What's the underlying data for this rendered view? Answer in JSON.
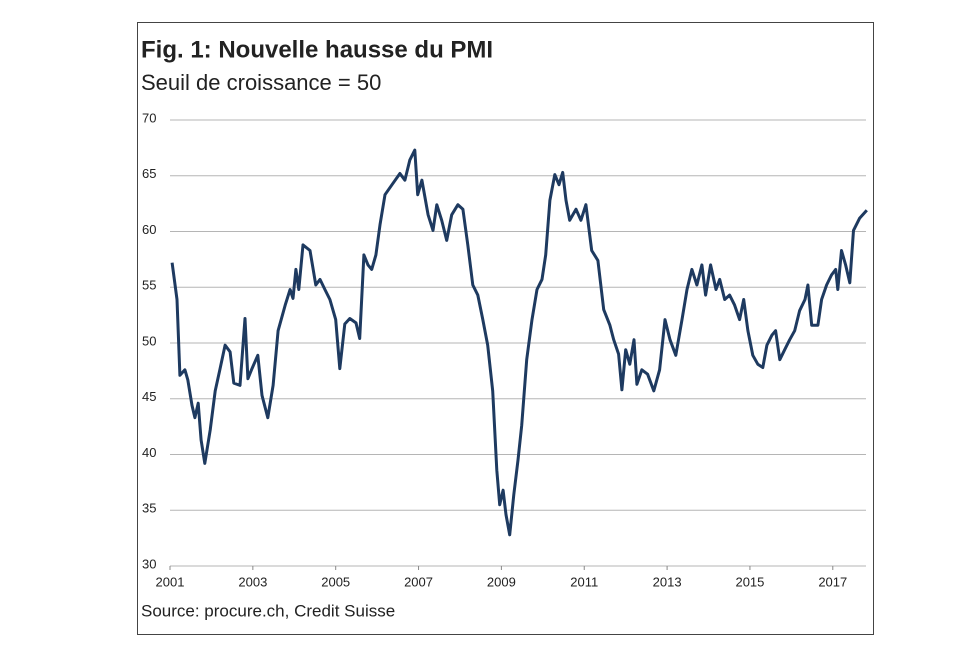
{
  "chart_data": {
    "type": "line",
    "title": "Fig. 1: Nouvelle hausse du PMI",
    "subtitle": "Seuil de croissance = 50",
    "source": "Source: procure.ch, Credit Suisse",
    "x": [
      2001.05,
      2001.17,
      2001.24,
      2001.36,
      2001.43,
      2001.53,
      2001.6,
      2001.68,
      2001.75,
      2001.84,
      2001.97,
      2002.09,
      2002.21,
      2002.33,
      2002.45,
      2002.54,
      2002.69,
      2002.81,
      2002.88,
      2002.98,
      2003.12,
      2003.22,
      2003.36,
      2003.49,
      2003.61,
      2003.78,
      2003.9,
      2003.97,
      2004.04,
      2004.11,
      2004.21,
      2004.38,
      2004.52,
      2004.62,
      2004.74,
      2004.86,
      2005.0,
      2005.1,
      2005.22,
      2005.34,
      2005.49,
      2005.58,
      2005.68,
      2005.78,
      2005.87,
      2005.97,
      2006.07,
      2006.19,
      2006.36,
      2006.55,
      2006.67,
      2006.79,
      2006.91,
      2006.98,
      2007.08,
      2007.23,
      2007.35,
      2007.44,
      2007.56,
      2007.68,
      2007.8,
      2007.95,
      2008.07,
      2008.19,
      2008.31,
      2008.43,
      2008.55,
      2008.67,
      2008.79,
      2008.89,
      2008.96,
      2009.04,
      2009.11,
      2009.2,
      2009.3,
      2009.4,
      2009.49,
      2009.61,
      2009.74,
      2009.86,
      2009.98,
      2010.07,
      2010.17,
      2010.29,
      2010.39,
      2010.48,
      2010.56,
      2010.65,
      2010.8,
      2010.92,
      2011.04,
      2011.18,
      2011.33,
      2011.47,
      2011.62,
      2011.71,
      2011.83,
      2011.91,
      2012.0,
      2012.1,
      2012.2,
      2012.27,
      2012.39,
      2012.53,
      2012.68,
      2012.82,
      2012.95,
      2013.07,
      2013.21,
      2013.36,
      2013.48,
      2013.6,
      2013.72,
      2013.84,
      2013.93,
      2014.05,
      2014.18,
      2014.27,
      2014.39,
      2014.51,
      2014.63,
      2014.75,
      2014.85,
      2014.95,
      2015.07,
      2015.19,
      2015.31,
      2015.41,
      2015.53,
      2015.62,
      2015.72,
      2015.84,
      2015.96,
      2016.08,
      2016.2,
      2016.33,
      2016.4,
      2016.49,
      2016.64,
      2016.73,
      2016.85,
      2016.97,
      2017.07,
      2017.12,
      2017.21,
      2017.31,
      2017.41,
      2017.5,
      2017.65,
      2017.82
    ],
    "series": [
      {
        "color": "#1e3a60",
        "values": [
          57.2,
          53.9,
          47.1,
          47.6,
          46.7,
          44.4,
          43.3,
          44.6,
          41.3,
          39.2,
          42.2,
          45.7,
          47.7,
          49.8,
          49.2,
          46.4,
          46.2,
          52.2,
          46.8,
          47.7,
          48.9,
          45.3,
          43.3,
          46.2,
          51.1,
          53.4,
          54.8,
          54.0,
          56.6,
          54.8,
          58.8,
          58.3,
          55.2,
          55.7,
          54.8,
          53.9,
          52.1,
          47.7,
          51.7,
          52.2,
          51.8,
          50.4,
          57.9,
          57.0,
          56.6,
          57.9,
          60.6,
          63.3,
          64.2,
          65.2,
          64.6,
          66.4,
          67.3,
          63.3,
          64.6,
          61.5,
          60.1,
          62.4,
          61.0,
          59.2,
          61.5,
          62.4,
          62.0,
          58.8,
          55.2,
          54.3,
          52.1,
          49.8,
          45.7,
          38.6,
          35.5,
          36.8,
          34.6,
          32.8,
          36.4,
          39.5,
          42.6,
          48.5,
          52.1,
          54.8,
          55.7,
          57.9,
          62.8,
          65.1,
          64.2,
          65.3,
          62.8,
          61.0,
          62.0,
          61.0,
          62.4,
          58.3,
          57.4,
          53.0,
          51.6,
          50.3,
          49.0,
          45.8,
          49.4,
          48.1,
          50.3,
          46.3,
          47.6,
          47.2,
          45.7,
          47.6,
          52.1,
          50.3,
          48.9,
          52.1,
          54.8,
          56.6,
          55.2,
          57.0,
          54.3,
          57.0,
          54.8,
          55.7,
          53.9,
          54.3,
          53.4,
          52.1,
          53.9,
          51.1,
          48.9,
          48.1,
          47.8,
          49.8,
          50.7,
          51.1,
          48.5,
          49.4,
          50.3,
          51.1,
          52.9,
          53.9,
          55.2,
          51.6,
          51.6,
          53.9,
          55.2,
          56.1,
          56.6,
          54.8,
          58.3,
          57.0,
          55.4,
          60.1,
          61.2,
          61.9
        ]
      }
    ],
    "xlim": [
      2001,
      2017.85
    ],
    "xticks": [
      2001,
      2003,
      2005,
      2007,
      2009,
      2011,
      2013,
      2015,
      2017
    ],
    "ylim": [
      30,
      70
    ],
    "yticks": [
      30,
      35,
      40,
      45,
      50,
      55,
      60,
      65,
      70
    ],
    "grid": true
  }
}
